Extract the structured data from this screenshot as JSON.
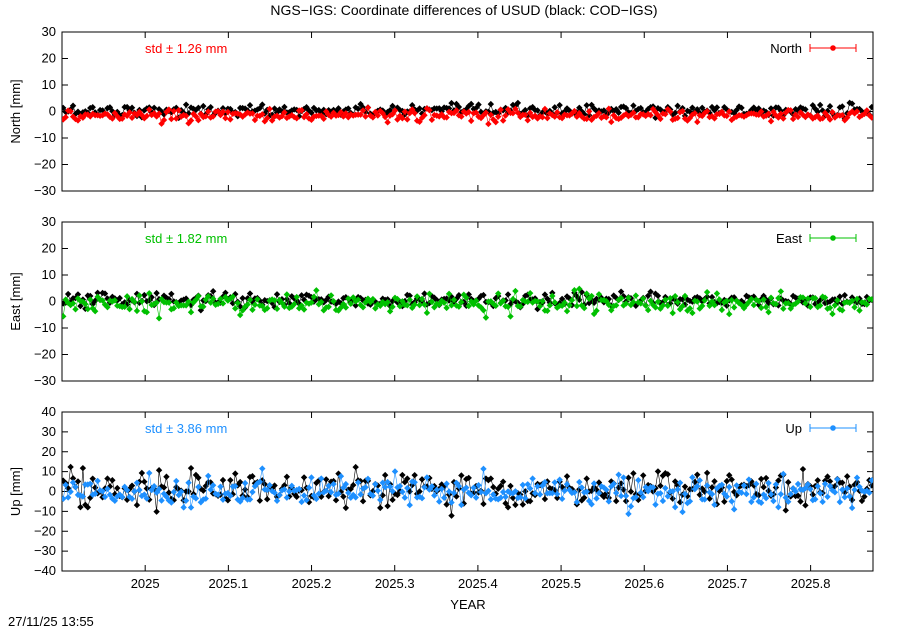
{
  "title": "NGS−IGS: Coordinate differences of USUD (black: COD−IGS)",
  "xlabel": "YEAR",
  "timestamp": "27/11/25 13:55",
  "chart_data": [
    {
      "type": "scatter",
      "ylabel": "North [mm]",
      "xlim": [
        2024.9,
        2025.875
      ],
      "ylim": [
        -30,
        30
      ],
      "yticks": [
        -30,
        -20,
        -10,
        0,
        10,
        20,
        30
      ],
      "xticks": [
        2025,
        2025.1,
        2025.2,
        2025.3,
        2025.4,
        2025.5,
        2025.6,
        2025.7,
        2025.8
      ],
      "std_text": "std ± 1.26 mm",
      "legend": "North",
      "legend_position": "top-right",
      "series_color": "#ff0000",
      "reference_color": "#000000",
      "series": {
        "mean": -1.5,
        "std": 1.26
      },
      "reference": {
        "mean": 0.3,
        "std": 1.1
      }
    },
    {
      "type": "scatter",
      "ylabel": "East [mm]",
      "xlim": [
        2024.9,
        2025.875
      ],
      "ylim": [
        -30,
        30
      ],
      "yticks": [
        -30,
        -20,
        -10,
        0,
        10,
        20,
        30
      ],
      "xticks": [
        2025,
        2025.1,
        2025.2,
        2025.3,
        2025.4,
        2025.5,
        2025.6,
        2025.7,
        2025.8
      ],
      "std_text": "std ± 1.82 mm",
      "legend": "East",
      "legend_position": "top-right",
      "series_color": "#00c000",
      "reference_color": "#000000",
      "series": {
        "mean": -0.6,
        "std": 1.82
      },
      "reference": {
        "mean": 0.5,
        "std": 1.3
      }
    },
    {
      "type": "scatter",
      "ylabel": "Up [mm]",
      "xlim": [
        2024.9,
        2025.875
      ],
      "ylim": [
        -40,
        40
      ],
      "yticks": [
        -40,
        -30,
        -20,
        -10,
        0,
        10,
        20,
        30,
        40
      ],
      "xticks": [
        2025,
        2025.1,
        2025.2,
        2025.3,
        2025.4,
        2025.5,
        2025.6,
        2025.7,
        2025.8
      ],
      "std_text": "std ± 3.86 mm",
      "legend": "Up",
      "legend_position": "top-right",
      "series_color": "#1e90ff",
      "reference_color": "#000000",
      "series": {
        "mean": 0.0,
        "std": 3.86
      },
      "reference": {
        "mean": 1.5,
        "std": 4.5
      }
    }
  ]
}
